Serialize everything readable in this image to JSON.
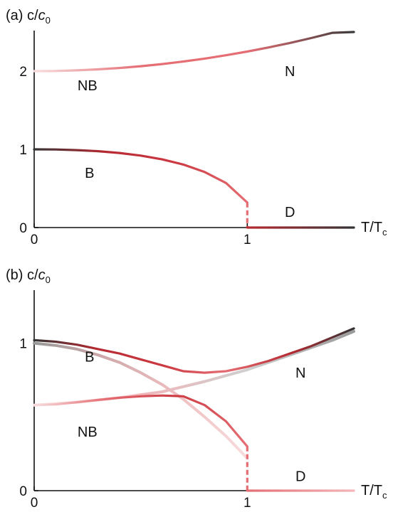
{
  "chart_data": [
    {
      "type": "line",
      "panel_label": "(a)",
      "ylabel": "c/c0",
      "ylabel_parts": {
        "base": "c/",
        "var": "c",
        "sub": "0"
      },
      "xlabel": "T/Tc",
      "xlabel_parts": {
        "base": "T/T",
        "sub": "c"
      },
      "xlim": [
        0,
        1.5
      ],
      "ylim": [
        0,
        2.5
      ],
      "xticks": [
        "0",
        "1"
      ],
      "xtick_values": [
        0,
        1
      ],
      "yticks": [
        "0",
        "1",
        "2"
      ],
      "ytick_values": [
        0,
        1,
        2
      ],
      "grid": false,
      "region_labels": [
        {
          "text": "NB",
          "x": 0.25,
          "y": 1.82
        },
        {
          "text": "N",
          "x": 1.2,
          "y": 2.0
        },
        {
          "text": "B",
          "x": 0.26,
          "y": 0.7
        },
        {
          "text": "D",
          "x": 1.2,
          "y": 0.2
        }
      ],
      "series": [
        {
          "key": "NB-N",
          "x": [
            0,
            0.1,
            0.2,
            0.3,
            0.4,
            0.5,
            0.6,
            0.7,
            0.8,
            0.9,
            1.0,
            1.1,
            1.2,
            1.3,
            1.4,
            1.5
          ],
          "y": [
            2.0,
            2.002,
            2.01,
            2.023,
            2.04,
            2.063,
            2.09,
            2.123,
            2.16,
            2.203,
            2.25,
            2.303,
            2.36,
            2.423,
            2.49,
            2.5
          ],
          "gradient": [
            "#f7dcdd",
            "#e46e74",
            "#e46e74",
            "#3a3a3a"
          ]
        },
        {
          "key": "B",
          "x": [
            0,
            0.1,
            0.2,
            0.3,
            0.4,
            0.5,
            0.6,
            0.7,
            0.8,
            0.9,
            1.0
          ],
          "y": [
            1.0,
            0.998,
            0.99,
            0.976,
            0.954,
            0.92,
            0.872,
            0.805,
            0.71,
            0.57,
            0.32
          ],
          "gradient": [
            "#333333",
            "#b72a32",
            "#cc3a42",
            "#e46e74"
          ]
        },
        {
          "key": "drop",
          "x": [
            1.0,
            1.0
          ],
          "y": [
            0.32,
            0.0
          ],
          "dashed": true,
          "color": "#e46e74"
        },
        {
          "key": "D",
          "x": [
            1.0,
            1.5
          ],
          "y": [
            0.0,
            0.0
          ],
          "gradient": [
            "#b72a32",
            "#333333"
          ]
        }
      ]
    },
    {
      "type": "line",
      "panel_label": "(b)",
      "ylabel": "c/c0",
      "ylabel_parts": {
        "base": "c/",
        "var": "c",
        "sub": "0"
      },
      "xlabel": "T/Tc",
      "xlabel_parts": {
        "base": "T/T",
        "sub": "c"
      },
      "xlim": [
        0,
        1.5
      ],
      "ylim": [
        0,
        1.35
      ],
      "xticks": [
        "0",
        "1"
      ],
      "xtick_values": [
        0,
        1
      ],
      "yticks": [
        "0",
        "1"
      ],
      "ytick_values": [
        0,
        1
      ],
      "grid": false,
      "region_labels": [
        {
          "text": "B",
          "x": 0.26,
          "y": 0.91
        },
        {
          "text": "N",
          "x": 1.25,
          "y": 0.8
        },
        {
          "text": "NB",
          "x": 0.25,
          "y": 0.4
        },
        {
          "text": "D",
          "x": 1.25,
          "y": 0.1
        }
      ],
      "series": [
        {
          "key": "B-faint",
          "x": [
            0,
            0.1,
            0.2,
            0.3,
            0.4,
            0.5,
            0.6,
            0.7,
            0.8,
            0.9,
            1.0
          ],
          "y": [
            1.0,
            0.985,
            0.96,
            0.92,
            0.87,
            0.8,
            0.72,
            0.62,
            0.5,
            0.37,
            0.22
          ],
          "gradient": [
            "#999999",
            "#cfa9ab",
            "#efbec0",
            "#f7dcdd"
          ],
          "width": 4
        },
        {
          "key": "NB-faint",
          "x": [
            0,
            0.2,
            0.4,
            0.6,
            0.8,
            1.0,
            1.2,
            1.4,
            1.5
          ],
          "y": [
            0.58,
            0.6,
            0.63,
            0.67,
            0.74,
            0.82,
            0.92,
            1.02,
            1.08
          ],
          "gradient": [
            "#fbe8e9",
            "#f2b5b8",
            "#cfcfcf",
            "#9a9a9a"
          ],
          "width": 4
        },
        {
          "key": "B-N",
          "x": [
            0,
            0.1,
            0.2,
            0.3,
            0.4,
            0.5,
            0.6,
            0.7,
            0.8,
            0.9,
            1.0,
            1.1,
            1.2,
            1.3,
            1.4,
            1.5
          ],
          "y": [
            1.02,
            1.01,
            0.99,
            0.96,
            0.93,
            0.89,
            0.85,
            0.81,
            0.8,
            0.81,
            0.84,
            0.88,
            0.93,
            0.98,
            1.04,
            1.1
          ],
          "gradient": [
            "#333333",
            "#b72a32",
            "#cc3a42",
            "#e46e74",
            "#b72a32",
            "#333333"
          ]
        },
        {
          "key": "NB-bump",
          "x": [
            0,
            0.1,
            0.2,
            0.3,
            0.4,
            0.5,
            0.6,
            0.7,
            0.8,
            0.9,
            1.0
          ],
          "y": [
            0.58,
            0.585,
            0.6,
            0.615,
            0.63,
            0.64,
            0.645,
            0.64,
            0.58,
            0.47,
            0.3
          ],
          "gradient": [
            "#f7dcdd",
            "#e46e74",
            "#cc3a42",
            "#e46e74"
          ]
        },
        {
          "key": "drop",
          "x": [
            1.0,
            1.0
          ],
          "y": [
            0.3,
            0.0
          ],
          "dashed": true,
          "color": "#e46e74"
        },
        {
          "key": "D",
          "x": [
            1.0,
            1.5
          ],
          "y": [
            0.0,
            0.0
          ],
          "gradient": [
            "#e46e74",
            "#f2b5b8"
          ]
        }
      ]
    }
  ]
}
